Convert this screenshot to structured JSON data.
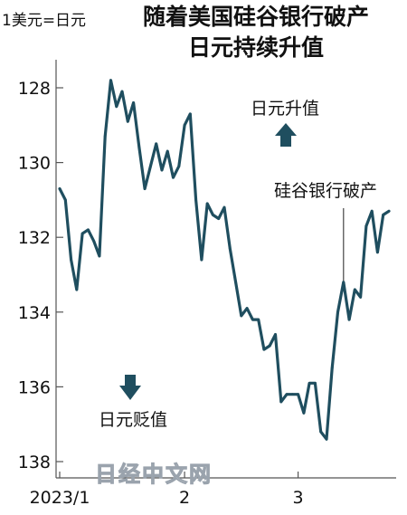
{
  "header": {
    "unit": "1美元=日元",
    "title_line1": "随着美国硅谷银行破产",
    "title_line2": "日元持续升值"
  },
  "annotations": {
    "appreciate": "日元升值",
    "depreciate": "日元贬值",
    "svb_event": "硅谷银行破产"
  },
  "watermark": "日经中文网",
  "colors": {
    "line": "#1f4e5f",
    "axis": "#555555",
    "event_line": "#444444",
    "text": "#111111"
  },
  "chart_data": {
    "type": "line",
    "title": "随着美国硅谷银行破产 日元持续升值",
    "ylabel": "1美元=日元",
    "y_inverted": true,
    "ylim": [
      127.0,
      138.3
    ],
    "yticks": [
      128,
      130,
      132,
      134,
      136,
      138
    ],
    "xticks": [
      {
        "label": "2023/1",
        "index": 0
      },
      {
        "label": "2",
        "index": 22
      },
      {
        "label": "3",
        "index": 42
      }
    ],
    "event": {
      "label": "硅谷银行破产",
      "index": 50
    },
    "series": [
      {
        "name": "",
        "values": [
          130.7,
          131.0,
          132.6,
          133.4,
          131.9,
          131.8,
          132.1,
          132.5,
          129.3,
          127.8,
          128.5,
          128.1,
          128.9,
          128.4,
          129.6,
          130.7,
          130.1,
          129.5,
          130.2,
          129.7,
          130.4,
          130.1,
          129.0,
          128.7,
          131.0,
          132.6,
          131.1,
          131.4,
          131.5,
          131.2,
          132.3,
          133.2,
          134.1,
          133.9,
          134.2,
          134.2,
          135.0,
          134.9,
          134.6,
          136.4,
          136.2,
          136.2,
          136.2,
          136.7,
          135.9,
          135.9,
          137.2,
          137.4,
          135.5,
          134.0,
          133.2,
          134.2,
          133.4,
          133.6,
          131.7,
          131.3,
          132.4,
          131.4,
          131.3
        ]
      }
    ]
  }
}
